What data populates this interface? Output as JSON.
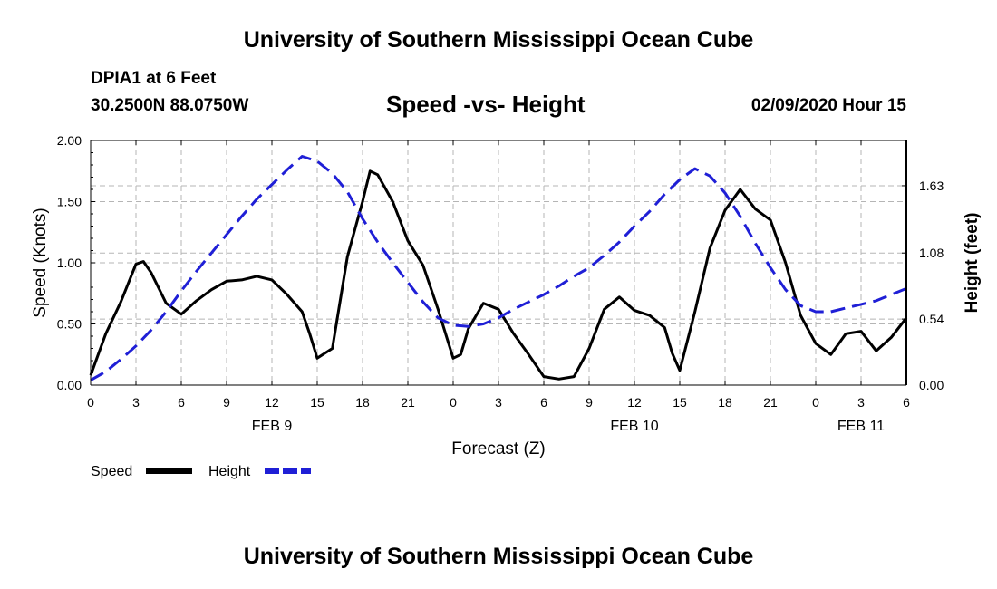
{
  "header": {
    "title": "University of Southern Mississippi Ocean Cube",
    "station": "DPIA1 at 6 Feet",
    "coords": "30.2500N 88.0750W",
    "subtitle": "Speed -vs- Height",
    "datetime": "02/09/2020 Hour 15"
  },
  "footer": {
    "title": "University of Southern Mississippi Ocean Cube"
  },
  "legend": {
    "speed_label": "Speed",
    "height_label": "Height",
    "speed_color": "#000000",
    "height_color": "#1f1fd6"
  },
  "chart_data": {
    "type": "line",
    "title": "Speed -vs- Height",
    "xlabel": "Forecast (Z)",
    "ylabel": "Speed (Knots)",
    "y2label": "Height (feet)",
    "xlim": [
      0,
      54
    ],
    "ylim": [
      0,
      2.0
    ],
    "y2lim": [
      0,
      2.0
    ],
    "grid": true,
    "x_ticks": [
      0,
      3,
      6,
      9,
      12,
      15,
      18,
      21,
      24,
      27,
      30,
      33,
      36,
      39,
      42,
      45,
      48,
      51,
      54
    ],
    "x_tick_labels": [
      "0",
      "3",
      "6",
      "9",
      "12",
      "15",
      "18",
      "21",
      "0",
      "3",
      "6",
      "9",
      "12",
      "15",
      "18",
      "21",
      "0",
      "3",
      "6"
    ],
    "y_ticks": [
      0,
      0.5,
      1.0,
      1.5,
      2.0
    ],
    "y_tick_labels": [
      "0.00",
      "0.50",
      "1.00",
      "1.50",
      "2.00"
    ],
    "y2_ticks": [
      0,
      0.54,
      1.08,
      1.63
    ],
    "y2_tick_labels": [
      "0.00",
      "0.54",
      "1.08",
      "1.63"
    ],
    "date_labels": [
      {
        "x": 12,
        "label": "FEB 9"
      },
      {
        "x": 36,
        "label": "FEB 10"
      },
      {
        "x": 51,
        "label": "FEB 11"
      }
    ],
    "series": [
      {
        "name": "Speed",
        "axis": "left",
        "style": "solid",
        "x": [
          0,
          1,
          2,
          3,
          3.5,
          4,
          5,
          6,
          7,
          8,
          9,
          10,
          11,
          12,
          13,
          14,
          14.5,
          15,
          16,
          17,
          18,
          18.5,
          19,
          20,
          21,
          22,
          23,
          24,
          24.5,
          25,
          26,
          27,
          28,
          29,
          30,
          31,
          32,
          33,
          34,
          35,
          36,
          37,
          38,
          38.5,
          39,
          40,
          41,
          42,
          43,
          44,
          45,
          46,
          47,
          48,
          49,
          50,
          51,
          52,
          53,
          54
        ],
        "values": [
          0.08,
          0.42,
          0.68,
          0.99,
          1.01,
          0.92,
          0.67,
          0.58,
          0.69,
          0.78,
          0.85,
          0.86,
          0.89,
          0.86,
          0.74,
          0.6,
          0.42,
          0.22,
          0.3,
          1.05,
          1.5,
          1.75,
          1.72,
          1.5,
          1.18,
          0.98,
          0.62,
          0.22,
          0.25,
          0.46,
          0.67,
          0.62,
          0.42,
          0.25,
          0.07,
          0.05,
          0.07,
          0.3,
          0.62,
          0.72,
          0.61,
          0.57,
          0.47,
          0.26,
          0.12,
          0.6,
          1.12,
          1.43,
          1.6,
          1.44,
          1.35,
          1.0,
          0.57,
          0.34,
          0.25,
          0.42,
          0.44,
          0.28,
          0.39,
          0.55
        ]
      },
      {
        "name": "Height",
        "axis": "right",
        "style": "dashed",
        "x": [
          0,
          1,
          2,
          3,
          4,
          5,
          6,
          7,
          8,
          9,
          10,
          11,
          12,
          13,
          14,
          15,
          16,
          17,
          18,
          19,
          20,
          21,
          22,
          23,
          24,
          25,
          26,
          27,
          28,
          29,
          30,
          31,
          32,
          33,
          34,
          35,
          36,
          37,
          38,
          39,
          40,
          41,
          42,
          43,
          44,
          45,
          46,
          47,
          48,
          49,
          50,
          51,
          52,
          53,
          54
        ],
        "values": [
          0.04,
          0.11,
          0.21,
          0.32,
          0.45,
          0.6,
          0.77,
          0.93,
          1.08,
          1.23,
          1.38,
          1.52,
          1.64,
          1.76,
          1.87,
          1.83,
          1.73,
          1.58,
          1.36,
          1.17,
          1.0,
          0.84,
          0.68,
          0.55,
          0.49,
          0.48,
          0.5,
          0.55,
          0.62,
          0.68,
          0.74,
          0.81,
          0.89,
          0.96,
          1.06,
          1.17,
          1.3,
          1.42,
          1.56,
          1.68,
          1.77,
          1.71,
          1.57,
          1.38,
          1.16,
          0.96,
          0.78,
          0.65,
          0.6,
          0.6,
          0.63,
          0.66,
          0.69,
          0.74,
          0.79
        ]
      }
    ]
  }
}
